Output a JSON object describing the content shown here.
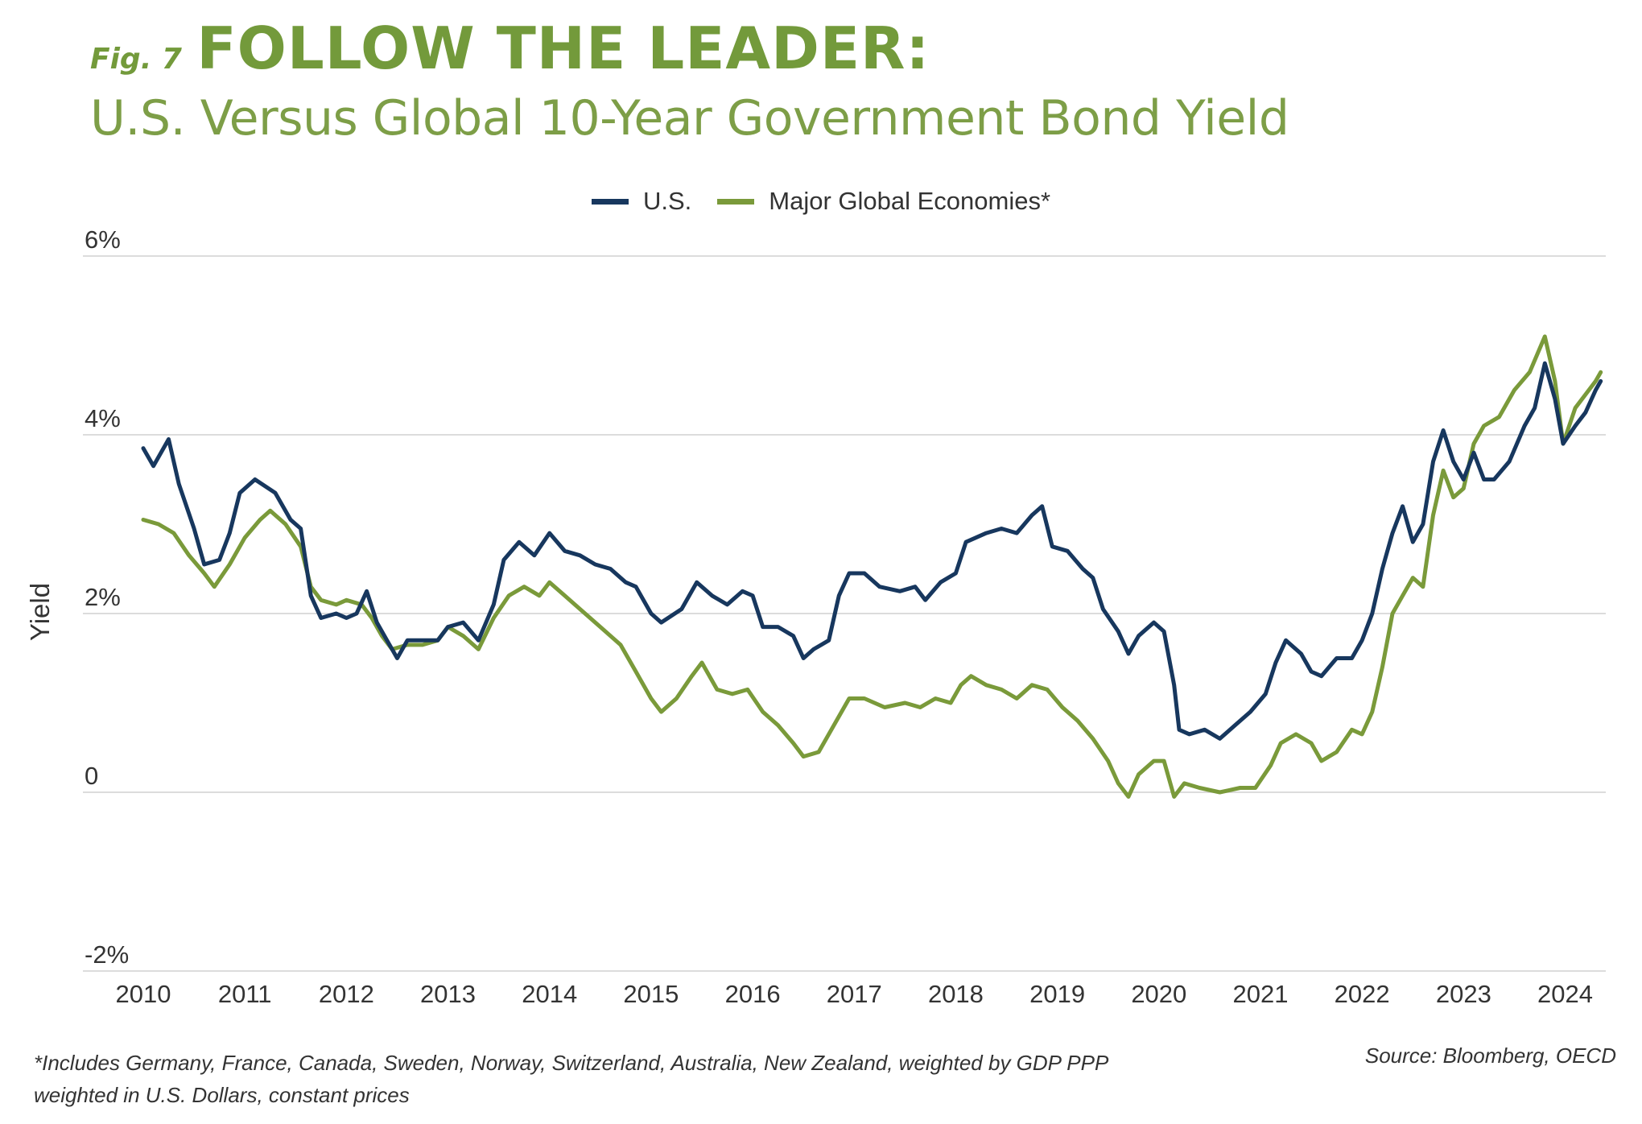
{
  "header": {
    "fig_label": "Fig. 7",
    "title": "FOLLOW THE LEADER:",
    "subtitle": "U.S. Versus Global 10-Year Government Bond Yield"
  },
  "legend": {
    "items": [
      {
        "label": "U.S.",
        "color": "#17375e"
      },
      {
        "label": "Major Global Economies*",
        "color": "#7a9a3a"
      }
    ]
  },
  "footer": {
    "footnote": "*Includes Germany, France, Canada, Sweden, Norway, Switzerland, Australia, New Zealand, weighted by GDP PPP weighted in U.S. Dollars, constant prices",
    "source": "Source: Bloomberg, OECD"
  },
  "chart_data": {
    "type": "line",
    "title": "U.S. Versus Global 10-Year Government Bond Yield",
    "xlabel": "",
    "ylabel": "Yield",
    "xlim": [
      2010,
      2024.4
    ],
    "ylim": [
      -2,
      6
    ],
    "grid": true,
    "legend_position": "top-center",
    "x_ticks": [
      "2010",
      "2011",
      "2012",
      "2013",
      "2014",
      "2015",
      "2016",
      "2017",
      "2018",
      "2019",
      "2020",
      "2021",
      "2022",
      "2023",
      "2024"
    ],
    "y_ticks": [
      {
        "value": 6,
        "label": "6%"
      },
      {
        "value": 4,
        "label": "4%"
      },
      {
        "value": 2,
        "label": "2%"
      },
      {
        "value": 0,
        "label": "0"
      },
      {
        "value": -2,
        "label": "-2%"
      }
    ],
    "series": [
      {
        "name": "U.S.",
        "color": "#17375e",
        "points": [
          [
            2010.0,
            3.85
          ],
          [
            2010.1,
            3.65
          ],
          [
            2010.25,
            3.95
          ],
          [
            2010.35,
            3.45
          ],
          [
            2010.5,
            2.95
          ],
          [
            2010.6,
            2.55
          ],
          [
            2010.75,
            2.6
          ],
          [
            2010.85,
            2.9
          ],
          [
            2010.95,
            3.35
          ],
          [
            2011.1,
            3.5
          ],
          [
            2011.3,
            3.35
          ],
          [
            2011.45,
            3.05
          ],
          [
            2011.55,
            2.95
          ],
          [
            2011.65,
            2.2
          ],
          [
            2011.75,
            1.95
          ],
          [
            2011.9,
            2.0
          ],
          [
            2012.0,
            1.95
          ],
          [
            2012.1,
            2.0
          ],
          [
            2012.2,
            2.25
          ],
          [
            2012.3,
            1.9
          ],
          [
            2012.4,
            1.7
          ],
          [
            2012.5,
            1.5
          ],
          [
            2012.6,
            1.7
          ],
          [
            2012.75,
            1.7
          ],
          [
            2012.9,
            1.7
          ],
          [
            2013.0,
            1.85
          ],
          [
            2013.15,
            1.9
          ],
          [
            2013.3,
            1.7
          ],
          [
            2013.45,
            2.1
          ],
          [
            2013.55,
            2.6
          ],
          [
            2013.7,
            2.8
          ],
          [
            2013.85,
            2.65
          ],
          [
            2014.0,
            2.9
          ],
          [
            2014.15,
            2.7
          ],
          [
            2014.3,
            2.65
          ],
          [
            2014.45,
            2.55
          ],
          [
            2014.6,
            2.5
          ],
          [
            2014.75,
            2.35
          ],
          [
            2014.85,
            2.3
          ],
          [
            2015.0,
            2.0
          ],
          [
            2015.1,
            1.9
          ],
          [
            2015.3,
            2.05
          ],
          [
            2015.45,
            2.35
          ],
          [
            2015.6,
            2.2
          ],
          [
            2015.75,
            2.1
          ],
          [
            2015.9,
            2.25
          ],
          [
            2016.0,
            2.2
          ],
          [
            2016.1,
            1.85
          ],
          [
            2016.25,
            1.85
          ],
          [
            2016.4,
            1.75
          ],
          [
            2016.5,
            1.5
          ],
          [
            2016.6,
            1.6
          ],
          [
            2016.75,
            1.7
          ],
          [
            2016.85,
            2.2
          ],
          [
            2016.95,
            2.45
          ],
          [
            2017.1,
            2.45
          ],
          [
            2017.25,
            2.3
          ],
          [
            2017.45,
            2.25
          ],
          [
            2017.6,
            2.3
          ],
          [
            2017.7,
            2.15
          ],
          [
            2017.85,
            2.35
          ],
          [
            2018.0,
            2.45
          ],
          [
            2018.1,
            2.8
          ],
          [
            2018.3,
            2.9
          ],
          [
            2018.45,
            2.95
          ],
          [
            2018.6,
            2.9
          ],
          [
            2018.75,
            3.1
          ],
          [
            2018.85,
            3.2
          ],
          [
            2018.95,
            2.75
          ],
          [
            2019.1,
            2.7
          ],
          [
            2019.25,
            2.5
          ],
          [
            2019.35,
            2.4
          ],
          [
            2019.45,
            2.05
          ],
          [
            2019.6,
            1.8
          ],
          [
            2019.7,
            1.55
          ],
          [
            2019.8,
            1.75
          ],
          [
            2019.95,
            1.9
          ],
          [
            2020.05,
            1.8
          ],
          [
            2020.15,
            1.2
          ],
          [
            2020.2,
            0.7
          ],
          [
            2020.3,
            0.65
          ],
          [
            2020.45,
            0.7
          ],
          [
            2020.6,
            0.6
          ],
          [
            2020.75,
            0.75
          ],
          [
            2020.9,
            0.9
          ],
          [
            2021.05,
            1.1
          ],
          [
            2021.15,
            1.45
          ],
          [
            2021.25,
            1.7
          ],
          [
            2021.4,
            1.55
          ],
          [
            2021.5,
            1.35
          ],
          [
            2021.6,
            1.3
          ],
          [
            2021.75,
            1.5
          ],
          [
            2021.9,
            1.5
          ],
          [
            2022.0,
            1.7
          ],
          [
            2022.1,
            2.0
          ],
          [
            2022.2,
            2.5
          ],
          [
            2022.3,
            2.9
          ],
          [
            2022.4,
            3.2
          ],
          [
            2022.5,
            2.8
          ],
          [
            2022.6,
            3.0
          ],
          [
            2022.7,
            3.7
          ],
          [
            2022.8,
            4.05
          ],
          [
            2022.9,
            3.7
          ],
          [
            2023.0,
            3.5
          ],
          [
            2023.1,
            3.8
          ],
          [
            2023.2,
            3.5
          ],
          [
            2023.3,
            3.5
          ],
          [
            2023.45,
            3.7
          ],
          [
            2023.6,
            4.1
          ],
          [
            2023.7,
            4.3
          ],
          [
            2023.8,
            4.8
          ],
          [
            2023.9,
            4.4
          ],
          [
            2023.98,
            3.9
          ],
          [
            2024.1,
            4.1
          ],
          [
            2024.2,
            4.25
          ],
          [
            2024.3,
            4.5
          ],
          [
            2024.35,
            4.6
          ]
        ]
      },
      {
        "name": "Major Global Economies*",
        "color": "#7a9a3a",
        "points": [
          [
            2010.0,
            3.05
          ],
          [
            2010.15,
            3.0
          ],
          [
            2010.3,
            2.9
          ],
          [
            2010.45,
            2.65
          ],
          [
            2010.6,
            2.45
          ],
          [
            2010.7,
            2.3
          ],
          [
            2010.85,
            2.55
          ],
          [
            2011.0,
            2.85
          ],
          [
            2011.15,
            3.05
          ],
          [
            2011.25,
            3.15
          ],
          [
            2011.4,
            3.0
          ],
          [
            2011.55,
            2.75
          ],
          [
            2011.65,
            2.3
          ],
          [
            2011.75,
            2.15
          ],
          [
            2011.9,
            2.1
          ],
          [
            2012.0,
            2.15
          ],
          [
            2012.15,
            2.1
          ],
          [
            2012.25,
            1.95
          ],
          [
            2012.35,
            1.75
          ],
          [
            2012.45,
            1.6
          ],
          [
            2012.6,
            1.65
          ],
          [
            2012.75,
            1.65
          ],
          [
            2012.9,
            1.7
          ],
          [
            2013.0,
            1.85
          ],
          [
            2013.15,
            1.75
          ],
          [
            2013.3,
            1.6
          ],
          [
            2013.45,
            1.95
          ],
          [
            2013.6,
            2.2
          ],
          [
            2013.75,
            2.3
          ],
          [
            2013.9,
            2.2
          ],
          [
            2014.0,
            2.35
          ],
          [
            2014.15,
            2.2
          ],
          [
            2014.3,
            2.05
          ],
          [
            2014.5,
            1.85
          ],
          [
            2014.7,
            1.65
          ],
          [
            2014.85,
            1.35
          ],
          [
            2015.0,
            1.05
          ],
          [
            2015.1,
            0.9
          ],
          [
            2015.25,
            1.05
          ],
          [
            2015.4,
            1.3
          ],
          [
            2015.5,
            1.45
          ],
          [
            2015.65,
            1.15
          ],
          [
            2015.8,
            1.1
          ],
          [
            2015.95,
            1.15
          ],
          [
            2016.1,
            0.9
          ],
          [
            2016.25,
            0.75
          ],
          [
            2016.4,
            0.55
          ],
          [
            2016.5,
            0.4
          ],
          [
            2016.65,
            0.45
          ],
          [
            2016.8,
            0.75
          ],
          [
            2016.95,
            1.05
          ],
          [
            2017.1,
            1.05
          ],
          [
            2017.3,
            0.95
          ],
          [
            2017.5,
            1.0
          ],
          [
            2017.65,
            0.95
          ],
          [
            2017.8,
            1.05
          ],
          [
            2017.95,
            1.0
          ],
          [
            2018.05,
            1.2
          ],
          [
            2018.15,
            1.3
          ],
          [
            2018.3,
            1.2
          ],
          [
            2018.45,
            1.15
          ],
          [
            2018.6,
            1.05
          ],
          [
            2018.75,
            1.2
          ],
          [
            2018.9,
            1.15
          ],
          [
            2019.05,
            0.95
          ],
          [
            2019.2,
            0.8
          ],
          [
            2019.35,
            0.6
          ],
          [
            2019.5,
            0.35
          ],
          [
            2019.6,
            0.1
          ],
          [
            2019.7,
            -0.05
          ],
          [
            2019.8,
            0.2
          ],
          [
            2019.95,
            0.35
          ],
          [
            2020.05,
            0.35
          ],
          [
            2020.15,
            -0.05
          ],
          [
            2020.25,
            0.1
          ],
          [
            2020.4,
            0.05
          ],
          [
            2020.6,
            0.0
          ],
          [
            2020.8,
            0.05
          ],
          [
            2020.95,
            0.05
          ],
          [
            2021.1,
            0.3
          ],
          [
            2021.2,
            0.55
          ],
          [
            2021.35,
            0.65
          ],
          [
            2021.5,
            0.55
          ],
          [
            2021.6,
            0.35
          ],
          [
            2021.75,
            0.45
          ],
          [
            2021.9,
            0.7
          ],
          [
            2022.0,
            0.65
          ],
          [
            2022.1,
            0.9
          ],
          [
            2022.2,
            1.4
          ],
          [
            2022.3,
            2.0
          ],
          [
            2022.4,
            2.2
          ],
          [
            2022.5,
            2.4
          ],
          [
            2022.6,
            2.3
          ],
          [
            2022.7,
            3.1
          ],
          [
            2022.8,
            3.6
          ],
          [
            2022.9,
            3.3
          ],
          [
            2023.0,
            3.4
          ],
          [
            2023.1,
            3.9
          ],
          [
            2023.2,
            4.1
          ],
          [
            2023.35,
            4.2
          ],
          [
            2023.5,
            4.5
          ],
          [
            2023.65,
            4.7
          ],
          [
            2023.8,
            5.1
          ],
          [
            2023.9,
            4.6
          ],
          [
            2023.98,
            3.9
          ],
          [
            2024.1,
            4.3
          ],
          [
            2024.2,
            4.45
          ],
          [
            2024.3,
            4.6
          ],
          [
            2024.35,
            4.7
          ]
        ]
      }
    ]
  }
}
